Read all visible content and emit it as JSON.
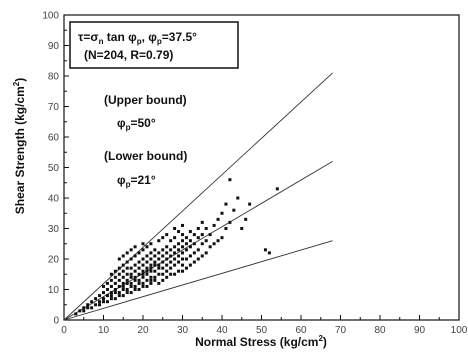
{
  "chart_data": {
    "type": "scatter",
    "title": "",
    "xlabel": "Normal Stress (kg/cm",
    "xlabel_sup": "2",
    "xlabel_close": ")",
    "ylabel": "Shear Strength (kg/cm",
    "ylabel_sup": "2",
    "ylabel_close": ")",
    "xlim": [
      0,
      100
    ],
    "ylim": [
      0,
      100
    ],
    "xticks": [
      "0",
      "10",
      "20",
      "30",
      "40",
      "50",
      "60",
      "70",
      "80",
      "90",
      "100"
    ],
    "yticks": [
      "0",
      "10",
      "20",
      "30",
      "40",
      "50",
      "60",
      "70",
      "80",
      "90",
      "100"
    ],
    "grid": false,
    "legend_box": {
      "formula": "τ=σ",
      "formula_sub": "n",
      "formula_mid": " tan φ",
      "formula_sub2": "p",
      "formula_sep": ",  φ",
      "formula_sub3": "p",
      "formula_end": "=37.5°",
      "stats": "(N=204, R=0.79)"
    },
    "annotations": {
      "upper_label": "(Upper bound)",
      "upper_phi": "φ",
      "upper_phi_sub": "p",
      "upper_phi_val": "=50°",
      "lower_label": "(Lower bound)",
      "lower_phi": "φ",
      "lower_phi_sub": "p",
      "lower_phi_val": "=21°"
    },
    "lines": [
      {
        "x": [
          0,
          68
        ],
        "y": [
          0,
          81
        ]
      },
      {
        "x": [
          0,
          68
        ],
        "y": [
          0,
          52
        ]
      },
      {
        "x": [
          0,
          68
        ],
        "y": [
          0,
          26
        ]
      }
    ],
    "points": [
      [
        3,
        2
      ],
      [
        4,
        3
      ],
      [
        5,
        3
      ],
      [
        5,
        4
      ],
      [
        6,
        4
      ],
      [
        6,
        5
      ],
      [
        7,
        4
      ],
      [
        7,
        6
      ],
      [
        8,
        5
      ],
      [
        8,
        7
      ],
      [
        9,
        5
      ],
      [
        9,
        6
      ],
      [
        9,
        8
      ],
      [
        10,
        6
      ],
      [
        10,
        7
      ],
      [
        10,
        9
      ],
      [
        10,
        11
      ],
      [
        11,
        6
      ],
      [
        11,
        8
      ],
      [
        11,
        10
      ],
      [
        11,
        12
      ],
      [
        12,
        7
      ],
      [
        12,
        8
      ],
      [
        12,
        9
      ],
      [
        12,
        11
      ],
      [
        12,
        13
      ],
      [
        12,
        15
      ],
      [
        13,
        7
      ],
      [
        13,
        9
      ],
      [
        13,
        10
      ],
      [
        13,
        12
      ],
      [
        13,
        14
      ],
      [
        13,
        16
      ],
      [
        14,
        8
      ],
      [
        14,
        9
      ],
      [
        14,
        11
      ],
      [
        14,
        13
      ],
      [
        14,
        15
      ],
      [
        14,
        17
      ],
      [
        14,
        20
      ],
      [
        15,
        8
      ],
      [
        15,
        10
      ],
      [
        15,
        11
      ],
      [
        15,
        12
      ],
      [
        15,
        14
      ],
      [
        15,
        16
      ],
      [
        15,
        18
      ],
      [
        15,
        21
      ],
      [
        16,
        9
      ],
      [
        16,
        10
      ],
      [
        16,
        12
      ],
      [
        16,
        13
      ],
      [
        16,
        15
      ],
      [
        16,
        17
      ],
      [
        16,
        19
      ],
      [
        16,
        22
      ],
      [
        17,
        9
      ],
      [
        17,
        11
      ],
      [
        17,
        12
      ],
      [
        17,
        14
      ],
      [
        17,
        15
      ],
      [
        17,
        17
      ],
      [
        17,
        20
      ],
      [
        17,
        23
      ],
      [
        18,
        10
      ],
      [
        18,
        11
      ],
      [
        18,
        13
      ],
      [
        18,
        14
      ],
      [
        18,
        16
      ],
      [
        18,
        18
      ],
      [
        18,
        21
      ],
      [
        18,
        24
      ],
      [
        19,
        10
      ],
      [
        19,
        12
      ],
      [
        19,
        13
      ],
      [
        19,
        15
      ],
      [
        19,
        17
      ],
      [
        19,
        19
      ],
      [
        19,
        22
      ],
      [
        20,
        11
      ],
      [
        20,
        12
      ],
      [
        20,
        14
      ],
      [
        20,
        15
      ],
      [
        20,
        16
      ],
      [
        20,
        18
      ],
      [
        20,
        20
      ],
      [
        20,
        23
      ],
      [
        20,
        25
      ],
      [
        21,
        11
      ],
      [
        21,
        13
      ],
      [
        21,
        15
      ],
      [
        21,
        16
      ],
      [
        21,
        17
      ],
      [
        21,
        19
      ],
      [
        21,
        21
      ],
      [
        21,
        24
      ],
      [
        22,
        12
      ],
      [
        22,
        13
      ],
      [
        22,
        14
      ],
      [
        22,
        16
      ],
      [
        22,
        17
      ],
      [
        22,
        18
      ],
      [
        22,
        20
      ],
      [
        22,
        22
      ],
      [
        22,
        25
      ],
      [
        23,
        13
      ],
      [
        23,
        14
      ],
      [
        23,
        16
      ],
      [
        23,
        18
      ],
      [
        23,
        19
      ],
      [
        23,
        21
      ],
      [
        23,
        23
      ],
      [
        24,
        12
      ],
      [
        24,
        15
      ],
      [
        24,
        17
      ],
      [
        24,
        18
      ],
      [
        24,
        20
      ],
      [
        24,
        22
      ],
      [
        24,
        26
      ],
      [
        25,
        13
      ],
      [
        25,
        15
      ],
      [
        25,
        17
      ],
      [
        25,
        19
      ],
      [
        25,
        21
      ],
      [
        25,
        23
      ],
      [
        25,
        27
      ],
      [
        26,
        14
      ],
      [
        26,
        16
      ],
      [
        26,
        18
      ],
      [
        26,
        20
      ],
      [
        26,
        22
      ],
      [
        26,
        24
      ],
      [
        26,
        28
      ],
      [
        27,
        15
      ],
      [
        27,
        17
      ],
      [
        27,
        19
      ],
      [
        27,
        21
      ],
      [
        27,
        23
      ],
      [
        27,
        26
      ],
      [
        28,
        15
      ],
      [
        28,
        18
      ],
      [
        28,
        20
      ],
      [
        28,
        22
      ],
      [
        28,
        24
      ],
      [
        28,
        27
      ],
      [
        28,
        30
      ],
      [
        29,
        16
      ],
      [
        29,
        19
      ],
      [
        29,
        21
      ],
      [
        29,
        23
      ],
      [
        29,
        25
      ],
      [
        29,
        29
      ],
      [
        30,
        16
      ],
      [
        30,
        18
      ],
      [
        30,
        20
      ],
      [
        30,
        22
      ],
      [
        30,
        24
      ],
      [
        30,
        26
      ],
      [
        30,
        28
      ],
      [
        30,
        31
      ],
      [
        31,
        17
      ],
      [
        31,
        20
      ],
      [
        31,
        23
      ],
      [
        31,
        25
      ],
      [
        31,
        27
      ],
      [
        32,
        18
      ],
      [
        32,
        21
      ],
      [
        32,
        24
      ],
      [
        32,
        26
      ],
      [
        32,
        29
      ],
      [
        33,
        19
      ],
      [
        33,
        22
      ],
      [
        33,
        25
      ],
      [
        33,
        28
      ],
      [
        34,
        20
      ],
      [
        34,
        23
      ],
      [
        34,
        27
      ],
      [
        34,
        30
      ],
      [
        35,
        21
      ],
      [
        35,
        25
      ],
      [
        35,
        28
      ],
      [
        35,
        32
      ],
      [
        36,
        22
      ],
      [
        36,
        26
      ],
      [
        36,
        30
      ],
      [
        37,
        24
      ],
      [
        37,
        28
      ],
      [
        38,
        25
      ],
      [
        38,
        31
      ],
      [
        39,
        26
      ],
      [
        39,
        33
      ],
      [
        40,
        27
      ],
      [
        40,
        35
      ],
      [
        41,
        30
      ],
      [
        41,
        38
      ],
      [
        42,
        32
      ],
      [
        42,
        46
      ],
      [
        43,
        36
      ],
      [
        44,
        40
      ],
      [
        45,
        30
      ],
      [
        46,
        33
      ],
      [
        47,
        38
      ],
      [
        51,
        23
      ],
      [
        52,
        22
      ],
      [
        54,
        43
      ]
    ]
  }
}
